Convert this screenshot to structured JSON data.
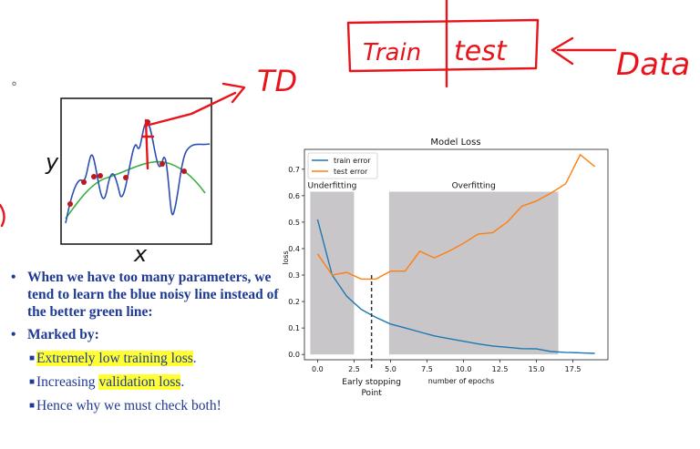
{
  "slide": {
    "bullets": [
      {
        "text": "When we have too many parameters, we tend to learn the blue noisy line instead of the better green line:"
      },
      {
        "text": "Marked by:"
      }
    ],
    "sub_bullets": {
      "s1_hl": "Extremely low training loss",
      "s1_rest": ".",
      "s2_pre": "Increasing ",
      "s2_hl": "validation loss",
      "s2_rest": ".",
      "s3": "Hence why we must check both!"
    },
    "fit_plot": {
      "xlabel": "x",
      "ylabel": "y"
    },
    "annotations": {
      "train_box": "Train",
      "test_box": "test",
      "data_label": "Data",
      "td_label": "TD"
    },
    "colors": {
      "bullet_text": "#1f3a93",
      "highlight": "#ffff33",
      "ink": "#e8141b",
      "train_line": "#1f77b4",
      "test_line": "#ff7f0e",
      "shade": "#c8c6c9"
    }
  },
  "chart_data": {
    "type": "line",
    "title": "Model Loss",
    "xlabel": "number of epochs",
    "ylabel": "loss",
    "xlim": [
      -0.9,
      19.9
    ],
    "ylim": [
      -0.02,
      0.775
    ],
    "xticks": [
      "0.0",
      "2.5",
      "5.0",
      "7.5",
      "10.0",
      "12.5",
      "15.0",
      "17.5"
    ],
    "xtick_values": [
      0,
      2.5,
      5,
      7.5,
      10,
      12.5,
      15,
      17.5
    ],
    "yticks": [
      "0.0",
      "0.1",
      "0.2",
      "0.3",
      "0.4",
      "0.5",
      "0.6",
      "0.7"
    ],
    "ytick_values": [
      0,
      0.1,
      0.2,
      0.3,
      0.4,
      0.5,
      0.6,
      0.7
    ],
    "legend_position": "top-left",
    "series": [
      {
        "name": "train error",
        "x": [
          0,
          1,
          2,
          3,
          4,
          5,
          6,
          7,
          8,
          9,
          10,
          11,
          12,
          13,
          14,
          15,
          16,
          17,
          18,
          19
        ],
        "values": [
          0.51,
          0.3,
          0.22,
          0.17,
          0.14,
          0.115,
          0.1,
          0.085,
          0.07,
          0.06,
          0.05,
          0.04,
          0.032,
          0.027,
          0.022,
          0.021,
          0.011,
          0.008,
          0.006,
          0.004
        ]
      },
      {
        "name": "test error",
        "x": [
          0,
          1,
          2,
          3,
          4,
          5,
          6,
          7,
          8,
          9,
          10,
          11,
          12,
          13,
          14,
          15,
          16,
          17,
          18,
          19
        ],
        "values": [
          0.38,
          0.3,
          0.31,
          0.285,
          0.285,
          0.315,
          0.315,
          0.39,
          0.365,
          0.39,
          0.42,
          0.455,
          0.46,
          0.5,
          0.56,
          0.58,
          0.61,
          0.645,
          0.755,
          0.71
        ]
      }
    ],
    "shaded_regions": [
      {
        "label": "Underfitting",
        "x0": -0.5,
        "x1": 2.5
      },
      {
        "label": "Overfitting",
        "x0": 4.9,
        "x1": 16.5
      }
    ],
    "early_stopping": {
      "x": 3.7,
      "label_line1": "Early stopping",
      "label_line2": "Point"
    }
  }
}
